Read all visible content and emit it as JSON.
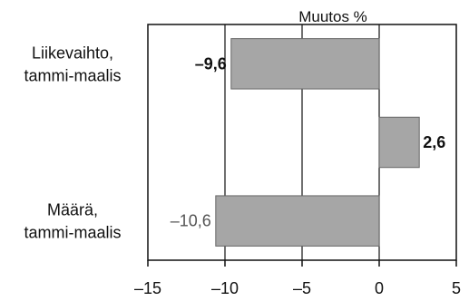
{
  "chart_data": {
    "type": "bar",
    "orientation": "horizontal",
    "title": "Muutos %",
    "rows": [
      {
        "line1": "Liikevaihto,",
        "line2": "tammi-maalis",
        "value": -9.6,
        "label": "–9,6",
        "label_color": "#111111",
        "label_weight": "bold"
      },
      {
        "line1": "",
        "line2": "",
        "value": 2.6,
        "label": "2,6",
        "label_color": "#111111",
        "label_weight": "bold"
      },
      {
        "line1": "Määrä,",
        "line2": "tammi-maalis",
        "value": -10.6,
        "label": "–10,6",
        "label_color": "#555555",
        "label_weight": "normal"
      }
    ],
    "xlim": [
      -15,
      5
    ],
    "xticks": [
      -15,
      -10,
      -5,
      0,
      5
    ],
    "xtick_labels": [
      "–15",
      "–10",
      "–5",
      "0",
      "5"
    ],
    "grid": "vertical",
    "bar_color": "#a6a6a6",
    "bar_edge_color": "#666666"
  }
}
